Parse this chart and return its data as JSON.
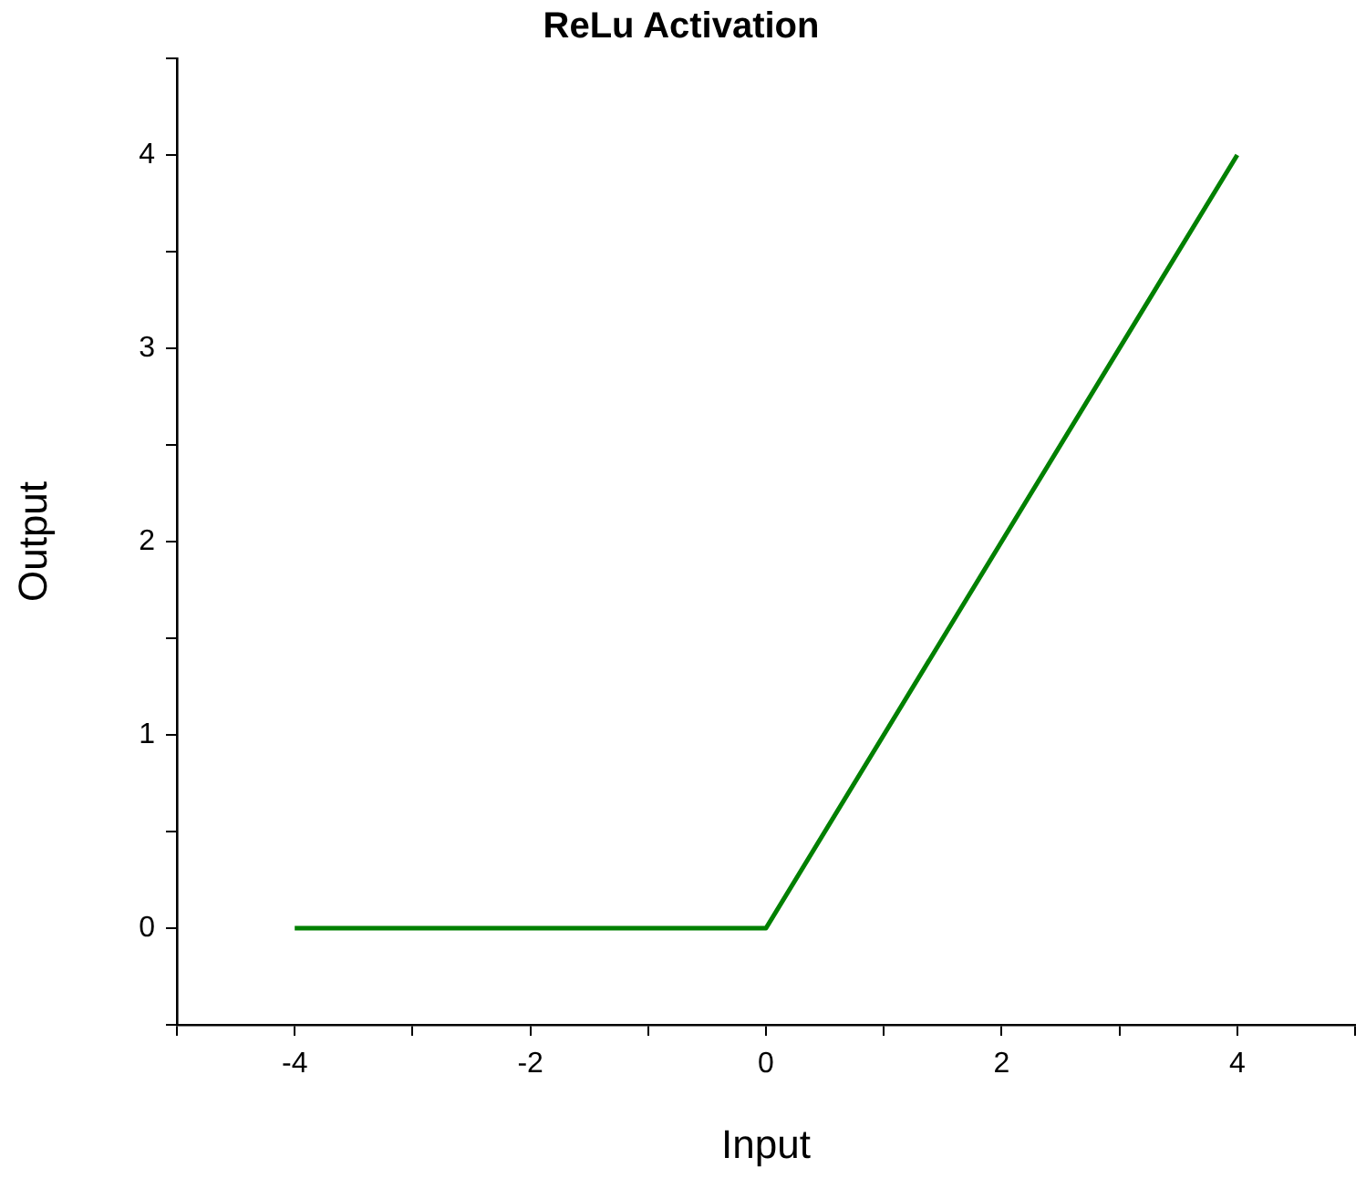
{
  "chart_data": {
    "type": "line",
    "title": "ReLu Activation",
    "xlabel": "Input",
    "ylabel": "Output",
    "x": [
      -4,
      0,
      4
    ],
    "series": [
      {
        "color": "#008000",
        "values": [
          0,
          0,
          4
        ]
      }
    ],
    "xlim": [
      -5,
      5
    ],
    "xticks": [
      {
        "value": -5,
        "label": null
      },
      -4,
      {
        "value": -3,
        "label": null
      },
      -2,
      {
        "value": -1,
        "label": null
      },
      0,
      {
        "value": 1,
        "label": null
      },
      2,
      {
        "value": 3,
        "label": null
      },
      4,
      {
        "value": 5,
        "label": null
      }
    ],
    "ylim": [
      -0.5,
      4.5
    ],
    "yticks": [
      {
        "value": -0.5,
        "label": null
      },
      0,
      {
        "value": 0.5,
        "label": null
      },
      1,
      {
        "value": 1.5,
        "label": null
      },
      2,
      {
        "value": 2.5,
        "label": null
      },
      3,
      {
        "value": 3.5,
        "label": null
      },
      4,
      {
        "value": 4.5,
        "label": null
      }
    ],
    "grid": false,
    "legend": false,
    "marker": "none",
    "line_style": "solid"
  }
}
